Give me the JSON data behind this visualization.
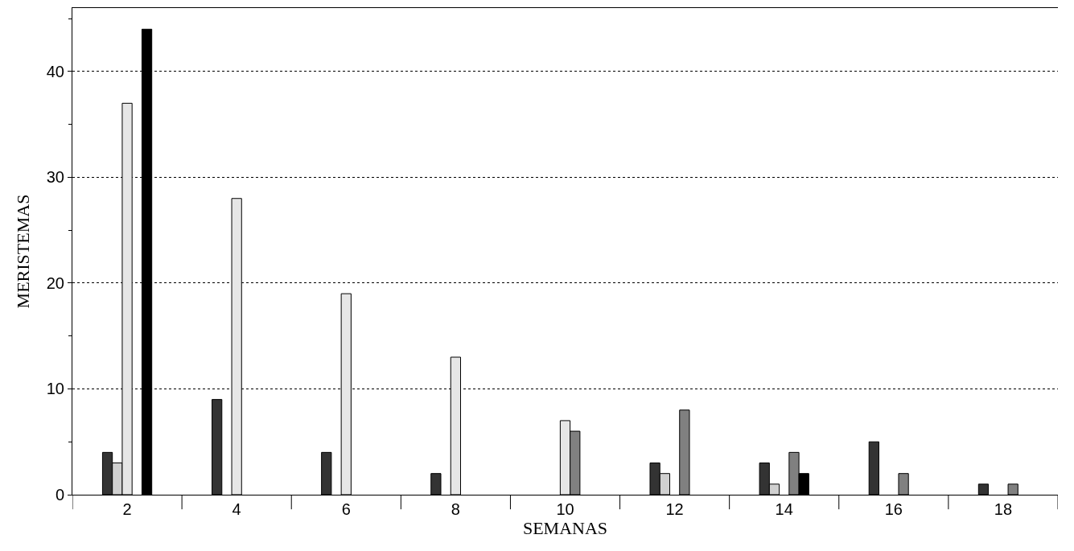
{
  "chart_data": {
    "type": "bar",
    "xlabel": "SEMANAS",
    "ylabel": "MERISTEMAS",
    "categories": [
      "2",
      "4",
      "6",
      "8",
      "10",
      "12",
      "14",
      "16",
      "18"
    ],
    "series": [
      {
        "color": "#333333",
        "values": [
          4,
          9,
          4,
          2,
          null,
          3,
          3,
          5,
          1
        ]
      },
      {
        "color": "#d0d0d0",
        "values": [
          3,
          null,
          null,
          null,
          null,
          2,
          1,
          null,
          null
        ]
      },
      {
        "color": "#e6e6e6",
        "values": [
          37,
          28,
          19,
          13,
          7,
          null,
          null,
          null,
          null
        ]
      },
      {
        "color": "#808080",
        "values": [
          null,
          null,
          null,
          null,
          6,
          8,
          4,
          2,
          1
        ]
      },
      {
        "color": "#000000",
        "values": [
          44,
          null,
          null,
          null,
          null,
          null,
          2,
          null,
          null
        ]
      }
    ],
    "ylim": [
      0,
      46
    ],
    "yticks": [
      0,
      10,
      20,
      30,
      40
    ],
    "grid": "y"
  }
}
